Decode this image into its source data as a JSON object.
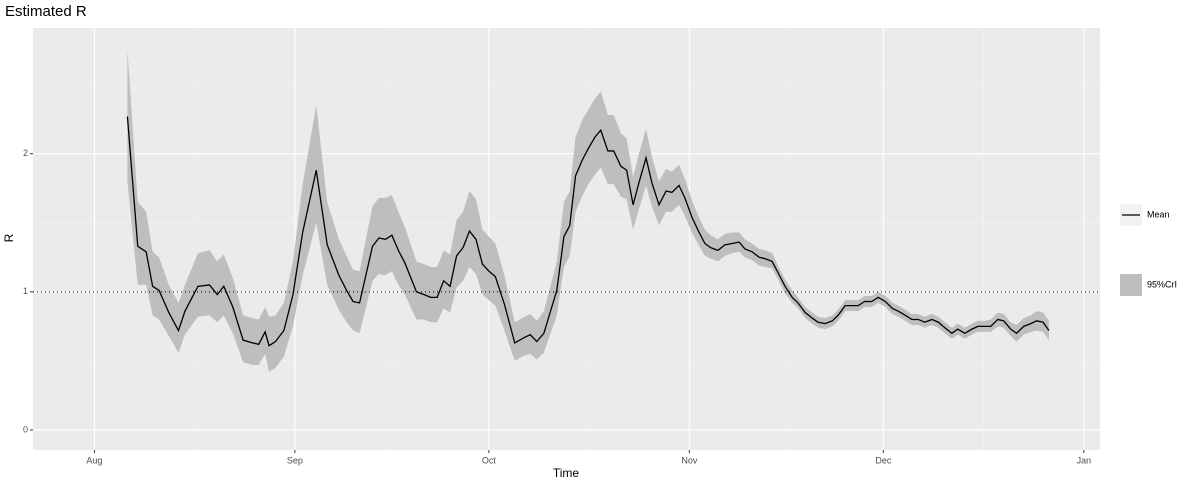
{
  "chart_data": {
    "type": "line",
    "title": "Estimated R",
    "x_label": "Time",
    "y_label": "R",
    "x": [
      5.1,
      6.7,
      8,
      9,
      10,
      11.5,
      13,
      14,
      16,
      17.8,
      19,
      20,
      21.4,
      23,
      24.5,
      25.4,
      26.4,
      27,
      28,
      29.3,
      30.7,
      32.2,
      34.3,
      36,
      37.8,
      39,
      40,
      41,
      43,
      44,
      45,
      46,
      47,
      48,
      49.8,
      51,
      52,
      53,
      54,
      55,
      56,
      57,
      58,
      59,
      60,
      61,
      62,
      63.4,
      65,
      66.5,
      67.4,
      68.4,
      69.5,
      70.4,
      71.5,
      72.6,
      73.5,
      74.4,
      75.5,
      76.4,
      77.4,
      78.3,
      79.4,
      80.3,
      81.4,
      82.3,
      83.3,
      84.2,
      85.3,
      86.2,
      87.3,
      88.4,
      89.3,
      90.4,
      91.3,
      92.4,
      93.3,
      94.4,
      95.3,
      96.4,
      97.5,
      98.6,
      99.7,
      100.6,
      101.7,
      102.8,
      103.7,
      104.8,
      105.7,
      106.8,
      107.9,
      108.8,
      109.9,
      111,
      111.9,
      113,
      114.1,
      115,
      116.1,
      117.1,
      118.1,
      119.1,
      120.2,
      121.2,
      122.3,
      123.4,
      124.3,
      125.4,
      126.4,
      127.4,
      128.4,
      129.5,
      130.5,
      131.5,
      132.6,
      133.5,
      134.6,
      135.7,
      136.6,
      137.7,
      138.6,
      139.7,
      140.6,
      141.7,
      142.6,
      143.7,
      144.8,
      145.7,
      146.7,
      147.6
    ],
    "series": [
      {
        "name": "Mean",
        "color": "#000000",
        "values": [
          2.27,
          1.33,
          1.29,
          1.04,
          1.01,
          0.85,
          0.72,
          0.86,
          1.04,
          1.05,
          0.98,
          1.04,
          0.89,
          0.65,
          0.63,
          0.62,
          0.71,
          0.61,
          0.64,
          0.72,
          0.98,
          1.43,
          1.88,
          1.34,
          1.12,
          1.01,
          0.93,
          0.92,
          1.33,
          1.39,
          1.38,
          1.41,
          1.3,
          1.21,
          1.0,
          0.98,
          0.96,
          0.96,
          1.08,
          1.04,
          1.26,
          1.32,
          1.44,
          1.38,
          1.2,
          1.15,
          1.11,
          0.91,
          0.63,
          0.67,
          0.69,
          0.64,
          0.7,
          0.84,
          1.01,
          1.4,
          1.48,
          1.84,
          1.96,
          2.04,
          2.12,
          2.17,
          2.02,
          2.02,
          1.91,
          1.88,
          1.63,
          1.79,
          1.97,
          1.79,
          1.63,
          1.73,
          1.72,
          1.77,
          1.68,
          1.54,
          1.45,
          1.35,
          1.32,
          1.3,
          1.34,
          1.35,
          1.36,
          1.31,
          1.29,
          1.25,
          1.24,
          1.22,
          1.14,
          1.04,
          0.96,
          0.92,
          0.85,
          0.81,
          0.78,
          0.77,
          0.79,
          0.83,
          0.9,
          0.9,
          0.9,
          0.93,
          0.93,
          0.96,
          0.93,
          0.88,
          0.86,
          0.83,
          0.8,
          0.8,
          0.78,
          0.8,
          0.78,
          0.74,
          0.7,
          0.73,
          0.7,
          0.73,
          0.75,
          0.75,
          0.75,
          0.8,
          0.79,
          0.73,
          0.7,
          0.75,
          0.77,
          0.79,
          0.78,
          0.72
        ]
      }
    ],
    "band": {
      "name": "95%CrI",
      "color": "#bebebe",
      "lower": [
        1.8,
        1.05,
        1.05,
        0.83,
        0.8,
        0.68,
        0.56,
        0.69,
        0.82,
        0.83,
        0.78,
        0.83,
        0.7,
        0.49,
        0.47,
        0.47,
        0.55,
        0.42,
        0.45,
        0.53,
        0.75,
        1.12,
        1.5,
        1.05,
        0.87,
        0.78,
        0.72,
        0.7,
        1.08,
        1.13,
        1.12,
        1.15,
        1.05,
        0.98,
        0.8,
        0.8,
        0.78,
        0.78,
        0.88,
        0.85,
        1.03,
        1.08,
        1.18,
        1.13,
        0.98,
        0.94,
        0.9,
        0.72,
        0.5,
        0.54,
        0.55,
        0.51,
        0.56,
        0.68,
        0.83,
        1.18,
        1.26,
        1.58,
        1.7,
        1.78,
        1.85,
        1.9,
        1.78,
        1.78,
        1.69,
        1.67,
        1.45,
        1.6,
        1.77,
        1.62,
        1.48,
        1.58,
        1.58,
        1.63,
        1.55,
        1.43,
        1.35,
        1.26,
        1.24,
        1.22,
        1.26,
        1.28,
        1.29,
        1.25,
        1.23,
        1.19,
        1.18,
        1.17,
        1.09,
        0.99,
        0.92,
        0.88,
        0.81,
        0.77,
        0.74,
        0.73,
        0.75,
        0.79,
        0.86,
        0.86,
        0.86,
        0.89,
        0.89,
        0.92,
        0.89,
        0.84,
        0.82,
        0.79,
        0.76,
        0.76,
        0.74,
        0.76,
        0.74,
        0.7,
        0.66,
        0.69,
        0.66,
        0.69,
        0.71,
        0.71,
        0.71,
        0.75,
        0.74,
        0.68,
        0.64,
        0.69,
        0.71,
        0.72,
        0.71,
        0.65
      ],
      "upper": [
        2.75,
        1.65,
        1.58,
        1.29,
        1.25,
        1.05,
        0.92,
        1.05,
        1.28,
        1.3,
        1.22,
        1.27,
        1.1,
        0.83,
        0.81,
        0.8,
        0.89,
        0.82,
        0.83,
        0.92,
        1.22,
        1.78,
        2.35,
        1.65,
        1.38,
        1.26,
        1.16,
        1.15,
        1.62,
        1.68,
        1.68,
        1.7,
        1.58,
        1.47,
        1.22,
        1.2,
        1.18,
        1.18,
        1.3,
        1.27,
        1.52,
        1.58,
        1.73,
        1.67,
        1.45,
        1.4,
        1.35,
        1.12,
        0.78,
        0.82,
        0.84,
        0.79,
        0.86,
        1.02,
        1.22,
        1.65,
        1.73,
        2.12,
        2.25,
        2.32,
        2.4,
        2.45,
        2.28,
        2.28,
        2.15,
        2.11,
        1.83,
        2.0,
        2.18,
        1.98,
        1.8,
        1.89,
        1.87,
        1.92,
        1.82,
        1.66,
        1.56,
        1.45,
        1.41,
        1.38,
        1.42,
        1.43,
        1.43,
        1.38,
        1.35,
        1.31,
        1.3,
        1.28,
        1.19,
        1.09,
        1.01,
        0.96,
        0.89,
        0.85,
        0.82,
        0.81,
        0.83,
        0.87,
        0.94,
        0.94,
        0.94,
        0.97,
        0.97,
        1.0,
        0.97,
        0.92,
        0.9,
        0.87,
        0.84,
        0.84,
        0.82,
        0.84,
        0.82,
        0.78,
        0.74,
        0.77,
        0.74,
        0.77,
        0.79,
        0.79,
        0.8,
        0.85,
        0.84,
        0.78,
        0.76,
        0.81,
        0.83,
        0.86,
        0.85,
        0.79
      ]
    },
    "hline": 1,
    "xlim": [
      -9.5,
      155.5
    ],
    "xticks": [
      {
        "value": 0,
        "label": "Aug"
      },
      {
        "value": 31,
        "label": "Sep"
      },
      {
        "value": 61,
        "label": "Oct"
      },
      {
        "value": 92,
        "label": "Nov"
      },
      {
        "value": 122,
        "label": "Dec"
      },
      {
        "value": 153,
        "label": "Jan"
      }
    ],
    "ylim": [
      -0.145,
      2.91
    ],
    "yticks": [
      0,
      1,
      2
    ],
    "grid": true,
    "legend": "right"
  }
}
